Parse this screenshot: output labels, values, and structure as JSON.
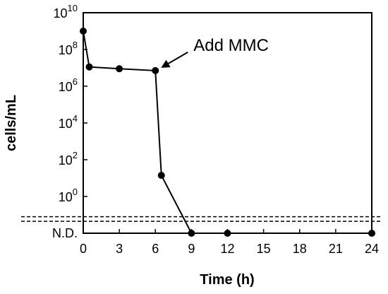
{
  "chart_data": {
    "type": "line",
    "xlabel": "Time (h)",
    "ylabel": "cells/mL",
    "xlim": [
      0,
      24
    ],
    "x_ticks": [
      "0",
      "3",
      "6",
      "9",
      "12",
      "15",
      "18",
      "21",
      "24"
    ],
    "y_scale": "log",
    "ylim_log10": [
      -2,
      10
    ],
    "y_ticks": [
      {
        "base": "10",
        "exp": "10",
        "log10": 10
      },
      {
        "base": "10",
        "exp": "8",
        "log10": 8
      },
      {
        "base": "10",
        "exp": "6",
        "log10": 6
      },
      {
        "base": "10",
        "exp": "4",
        "log10": 4
      },
      {
        "base": "10",
        "exp": "2",
        "log10": 2
      },
      {
        "base": "10",
        "exp": "0",
        "log10": 0
      }
    ],
    "nd_label": "N.D.",
    "detection_limit_log10": [
      -1.1,
      -1.35
    ],
    "series": [
      {
        "points": [
          {
            "x": 0,
            "log10_y": 9.0
          },
          {
            "x": 0.5,
            "log10_y": 7.05
          },
          {
            "x": 3,
            "log10_y": 6.95
          },
          {
            "x": 6,
            "log10_y": 6.85
          },
          {
            "x": 6.5,
            "log10_y": 1.15
          },
          {
            "x": 9,
            "nd": true
          },
          {
            "x": 12,
            "nd": true
          },
          {
            "x": 24,
            "nd": true
          }
        ]
      }
    ],
    "annotation": {
      "text": "Add MMC",
      "x": 6,
      "log10_y": 6.85
    },
    "grid": false,
    "legend": "none"
  }
}
